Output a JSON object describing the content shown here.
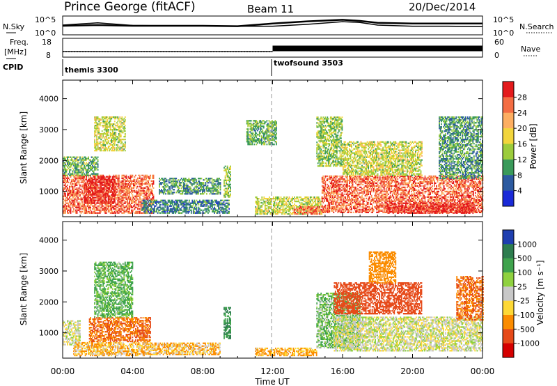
{
  "header": {
    "station": "Prince George (fitACF)",
    "beam": "Beam 11",
    "date": "20/Dec/2014"
  },
  "top_panels": {
    "nsky_label": "N.Sky",
    "nsky_ticks": [
      "10^5",
      "10^0"
    ],
    "nsearch_label": "N.Search",
    "nsearch_ticks": [
      "10^5",
      "10^0"
    ],
    "freq_label_1": "Freq.",
    "freq_label_2": "[MHz]",
    "freq_ticks": [
      "18",
      "8"
    ],
    "nave_label": "Nave",
    "nave_ticks": [
      "60",
      "0"
    ],
    "cpid_label": "CPID",
    "cpid_segments": [
      "themis 3300",
      "twofsound 3503"
    ]
  },
  "power_panel": {
    "ylabel": "Slant Range [km]",
    "colorbar_label": "Power [dB]",
    "colorbar_ticks": [
      "28",
      "24",
      "20",
      "16",
      "12",
      "8",
      "4"
    ],
    "colors": [
      "#e41a1c",
      "#f46d43",
      "#fdae61",
      "#f2d53c",
      "#9ccc3c",
      "#3a9a5a",
      "#2c5aa0",
      "#1a2ad8"
    ]
  },
  "velocity_panel": {
    "ylabel": "Slant Range [km]",
    "colorbar_label": "Velocity [m s⁻¹]",
    "colorbar_ticks": [
      "1000",
      "500",
      "100",
      "25",
      "-25",
      "-100",
      "-500",
      "-1000"
    ],
    "colors": [
      "#1f3fb0",
      "#2e7d4f",
      "#3fa34d",
      "#8fd13f",
      "#c8c8c8",
      "#fdd835",
      "#fb8c00",
      "#e64a19",
      "#d50000"
    ]
  },
  "x_axis": {
    "label": "Time UT",
    "ticks": [
      "00:00",
      "04:00",
      "08:00",
      "12:00",
      "16:00",
      "20:00",
      "00:00"
    ]
  },
  "y_axis_ticks": [
    "4000",
    "3000",
    "2000",
    "1000"
  ],
  "chart_data": [
    {
      "type": "line",
      "name": "N.Sky / N.Search noise",
      "x_hours": [
        0,
        2,
        4,
        6,
        8,
        10,
        12,
        14,
        16,
        17,
        18,
        20,
        22,
        24
      ],
      "nsky_log": [
        2.6,
        3.2,
        2.5,
        2.4,
        2.4,
        2.3,
        2.3,
        2.8,
        3.5,
        3.3,
        2.6,
        2.3,
        2.3,
        2.2
      ],
      "nsearch_log": [
        2.4,
        2.6,
        2.4,
        2.4,
        2.4,
        2.3,
        3.0,
        3.6,
        4.0,
        3.7,
        3.2,
        3.0,
        3.0,
        3.0
      ],
      "ylim_log": [
        0,
        5
      ]
    },
    {
      "type": "line",
      "name": "Freq / Nave",
      "freq_segments": [
        {
          "x_start": 0,
          "x_end": 12,
          "freq_mhz": 11
        },
        {
          "x_start": 12,
          "x_end": 24,
          "freq_mhz": 13
        }
      ],
      "nave_segments": [
        {
          "x_start": 0,
          "x_end": 12,
          "nave": 17
        },
        {
          "x_start": 12,
          "x_end": 24,
          "nave": 36
        }
      ],
      "freq_ylim": [
        8,
        18
      ],
      "nave_ylim": [
        0,
        60
      ]
    },
    {
      "type": "heatmap",
      "title": "Power",
      "xlabel": "Time UT",
      "ylabel": "Slant Range [km]",
      "xlim_hours": [
        0,
        24
      ],
      "ylim_km": [
        180,
        4600
      ],
      "clim_db": [
        0,
        30
      ],
      "regions": [
        {
          "t0": 0.0,
          "t1": 5.2,
          "r0": 280,
          "r1": 1500,
          "value": 24
        },
        {
          "t0": 1.2,
          "t1": 3.0,
          "r0": 600,
          "r1": 1500,
          "value": 28
        },
        {
          "t0": 0.0,
          "t1": 2.0,
          "r0": 1500,
          "r1": 2100,
          "value": 10
        },
        {
          "t0": 1.8,
          "t1": 3.6,
          "r0": 2300,
          "r1": 3400,
          "value": 14
        },
        {
          "t0": 4.5,
          "t1": 9.5,
          "r0": 280,
          "r1": 700,
          "value": 6
        },
        {
          "t0": 5.5,
          "t1": 9.0,
          "r0": 900,
          "r1": 1400,
          "value": 8
        },
        {
          "t0": 9.2,
          "t1": 9.6,
          "r0": 800,
          "r1": 1800,
          "value": 12
        },
        {
          "t0": 10.5,
          "t1": 12.2,
          "r0": 2500,
          "r1": 3300,
          "value": 10
        },
        {
          "t0": 11.0,
          "t1": 14.8,
          "r0": 250,
          "r1": 800,
          "value": 14
        },
        {
          "t0": 13.2,
          "t1": 14.8,
          "r0": 250,
          "r1": 500,
          "value": 24
        },
        {
          "t0": 14.8,
          "t1": 24.0,
          "r0": 300,
          "r1": 1500,
          "value": 24
        },
        {
          "t0": 18.5,
          "t1": 23.5,
          "r0": 280,
          "r1": 600,
          "value": 28
        },
        {
          "t0": 14.5,
          "t1": 16.0,
          "r0": 1800,
          "r1": 3400,
          "value": 12
        },
        {
          "t0": 16.0,
          "t1": 20.5,
          "r0": 1500,
          "r1": 2600,
          "value": 14
        },
        {
          "t0": 21.5,
          "t1": 24.0,
          "r0": 1400,
          "r1": 3400,
          "value": 8
        }
      ]
    },
    {
      "type": "heatmap",
      "title": "Velocity",
      "xlabel": "Time UT",
      "ylabel": "Slant Range [km]",
      "xlim_hours": [
        0,
        24
      ],
      "ylim_km": [
        180,
        4600
      ],
      "clim_ms": [
        -1000,
        1000
      ],
      "regions": [
        {
          "t0": 0.0,
          "t1": 1.0,
          "r0": 600,
          "r1": 1400,
          "value": 0
        },
        {
          "t0": 0.6,
          "t1": 5.0,
          "r0": 250,
          "r1": 700,
          "value": -60
        },
        {
          "t0": 1.5,
          "t1": 5.0,
          "r0": 700,
          "r1": 1500,
          "value": -300
        },
        {
          "t0": 1.8,
          "t1": 4.0,
          "r0": 1500,
          "r1": 3300,
          "value": 80
        },
        {
          "t0": 5.0,
          "t1": 9.0,
          "r0": 280,
          "r1": 650,
          "value": -60
        },
        {
          "t0": 9.2,
          "t1": 9.6,
          "r0": 800,
          "r1": 1800,
          "value": 300
        },
        {
          "t0": 11.0,
          "t1": 14.5,
          "r0": 250,
          "r1": 500,
          "value": -80
        },
        {
          "t0": 14.5,
          "t1": 17.0,
          "r0": 500,
          "r1": 2300,
          "value": 60
        },
        {
          "t0": 15.5,
          "t1": 24.0,
          "r0": 400,
          "r1": 1500,
          "value": 0
        },
        {
          "t0": 15.5,
          "t1": 20.5,
          "r0": 1600,
          "r1": 2600,
          "value": -600
        },
        {
          "t0": 17.5,
          "t1": 19.0,
          "r0": 2600,
          "r1": 3600,
          "value": -200
        },
        {
          "t0": 22.5,
          "t1": 24.0,
          "r0": 1400,
          "r1": 2800,
          "value": -300
        }
      ]
    }
  ]
}
